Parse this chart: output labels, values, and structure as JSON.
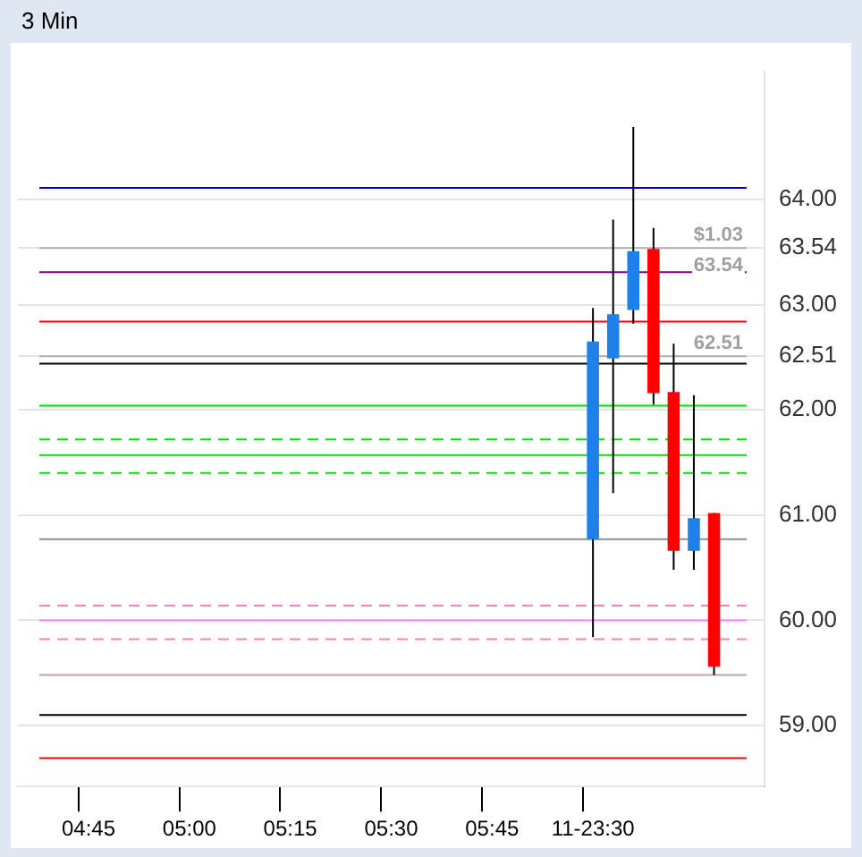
{
  "chart_data": {
    "type": "candlestick",
    "title": "3 Min",
    "categories": [
      null,
      null,
      null,
      "04:45",
      null,
      null,
      null,
      null,
      "05:00",
      null,
      null,
      null,
      null,
      "05:15",
      null,
      null,
      null,
      null,
      "05:30",
      null,
      null,
      null,
      null,
      "05:45",
      null,
      null,
      null,
      null,
      "11-23:30",
      null,
      null,
      null,
      null,
      null,
      null,
      null,
      null
    ],
    "ohlc": [
      null,
      null,
      null,
      null,
      null,
      null,
      null,
      null,
      null,
      null,
      null,
      null,
      null,
      null,
      null,
      null,
      null,
      null,
      null,
      null,
      null,
      null,
      null,
      null,
      null,
      null,
      null,
      null,
      [
        60.77,
        62.97,
        59.84,
        62.65
      ],
      [
        62.49,
        63.81,
        61.21,
        62.91
      ],
      [
        62.95,
        64.69,
        62.82,
        63.51
      ],
      [
        63.53,
        63.73,
        62.05,
        62.16
      ],
      [
        62.17,
        62.63,
        60.48,
        60.66
      ],
      [
        60.66,
        62.14,
        60.48,
        60.97
      ],
      [
        61.02,
        61.02,
        59.48,
        59.56
      ],
      null,
      null
    ],
    "colors": [
      null,
      null,
      null,
      null,
      null,
      null,
      null,
      null,
      null,
      null,
      null,
      null,
      null,
      null,
      null,
      null,
      null,
      null,
      null,
      null,
      null,
      null,
      null,
      null,
      null,
      null,
      null,
      null,
      "#1e80e8",
      "#1e80e8",
      "#1e80e8",
      "#ff0000",
      "#ff0000",
      "#1e80e8",
      "#ff0000",
      null,
      null
    ],
    "ylim": [
      58.42,
      65.22
    ],
    "yticks": [
      {
        "value": 59,
        "label": "59.00"
      },
      {
        "value": 60,
        "label": "60.00"
      },
      {
        "value": 61,
        "label": "61.00"
      },
      {
        "value": 62,
        "label": "62.00"
      },
      {
        "value": 62.51,
        "label": "62.51"
      },
      {
        "value": 63,
        "label": "63.00"
      },
      {
        "value": 63.54,
        "label": "63.54"
      },
      {
        "value": 64,
        "label": "64.00"
      }
    ],
    "grid": true,
    "legend": false,
    "ref_lines": [
      {
        "axis": "y",
        "value": 64.11,
        "color": "#0000c0"
      },
      {
        "axis": "y",
        "value": 63.54,
        "color": "#b0b0b0"
      },
      {
        "axis": "y",
        "value": 63.31,
        "color": "#800080"
      },
      {
        "axis": "y",
        "value": 62.84,
        "color": "#ff0000"
      },
      {
        "axis": "y",
        "value": 62.51,
        "color": "#b0b0b0"
      },
      {
        "axis": "y",
        "value": 62.44,
        "color": "#000000"
      },
      {
        "axis": "y",
        "value": 62.04,
        "color": "#00e000"
      },
      {
        "axis": "y",
        "value": 61.72,
        "color": "#00e000",
        "line_style": "dashed"
      },
      {
        "axis": "y",
        "value": 61.57,
        "color": "#00e000"
      },
      {
        "axis": "y",
        "value": 61.4,
        "color": "#00e000",
        "line_style": "dashed"
      },
      {
        "axis": "y",
        "value": 60.77,
        "color": "#909090"
      },
      {
        "axis": "y",
        "value": 60.14,
        "color": "#ff80c0",
        "line_style": "dashed"
      },
      {
        "axis": "y",
        "value": 60.0,
        "color": "#ff80ff"
      },
      {
        "axis": "y",
        "value": 59.82,
        "color": "#ff80c0",
        "line_style": "dashed"
      },
      {
        "axis": "y",
        "value": 59.48,
        "color": "#c0a0c0"
      },
      {
        "axis": "y",
        "value": 59.1,
        "color": "#000000"
      },
      {
        "axis": "y",
        "value": 58.69,
        "color": "#ff0000"
      }
    ],
    "annotations": [
      {
        "text": "$1.03",
        "y": 63.54
      },
      {
        "text": "63.54",
        "y": 63.54
      },
      {
        "text": "62.51",
        "y": 62.51
      }
    ]
  }
}
